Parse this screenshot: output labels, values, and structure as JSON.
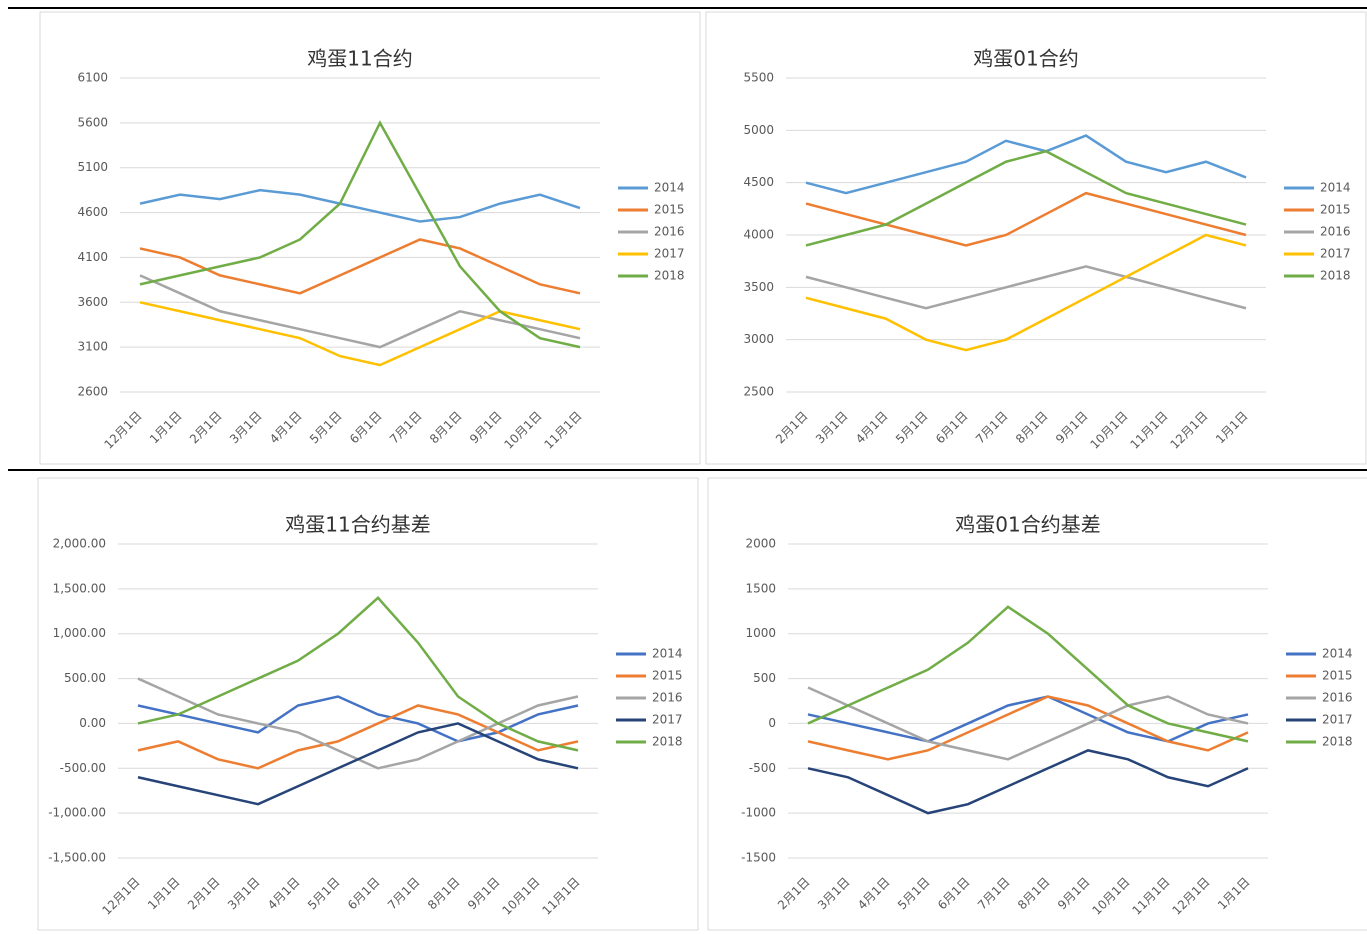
{
  "chart_data": [
    {
      "type": "line",
      "title": "鸡蛋11合约",
      "categories": [
        "12月1日",
        "1月1日",
        "2月1日",
        "3月1日",
        "4月1日",
        "5月1日",
        "6月1日",
        "7月1日",
        "8月1日",
        "9月1日",
        "10月1日",
        "11月1日"
      ],
      "ylim": [
        2600,
        6100
      ],
      "yticks": [
        2600,
        3100,
        3600,
        4100,
        4600,
        5100,
        5600,
        6100
      ],
      "grid": true,
      "series": [
        {
          "name": "2014",
          "color": "#5b9bd5",
          "values": [
            4700,
            4800,
            4750,
            4850,
            4800,
            4700,
            4600,
            4500,
            4550,
            4700,
            4800,
            4650
          ]
        },
        {
          "name": "2015",
          "color": "#ed7d31",
          "values": [
            4200,
            4100,
            3900,
            3800,
            3700,
            3900,
            4100,
            4300,
            4200,
            4000,
            3800,
            3700
          ]
        },
        {
          "name": "2016",
          "color": "#a5a5a5",
          "values": [
            3900,
            3700,
            3500,
            3400,
            3300,
            3200,
            3100,
            3300,
            3500,
            3400,
            3300,
            3200
          ]
        },
        {
          "name": "2017",
          "color": "#ffc000",
          "values": [
            3600,
            3500,
            3400,
            3300,
            3200,
            3000,
            2900,
            3100,
            3300,
            3500,
            3400,
            3300
          ]
        },
        {
          "name": "2018",
          "color": "#70ad47",
          "values": [
            3800,
            3900,
            4000,
            4100,
            4300,
            4700,
            5600,
            4800,
            4000,
            3500,
            3200,
            3100
          ]
        }
      ]
    },
    {
      "type": "line",
      "title": "鸡蛋01合约",
      "categories": [
        "2月1日",
        "3月1日",
        "4月1日",
        "5月1日",
        "6月1日",
        "7月1日",
        "8月1日",
        "9月1日",
        "10月1日",
        "11月1日",
        "12月1日",
        "1月1日"
      ],
      "ylim": [
        2500,
        5500
      ],
      "yticks": [
        2500,
        3000,
        3500,
        4000,
        4500,
        5000,
        5500
      ],
      "grid": true,
      "series": [
        {
          "name": "2014",
          "color": "#5b9bd5",
          "values": [
            4500,
            4400,
            4500,
            4600,
            4700,
            4900,
            4800,
            4950,
            4700,
            4600,
            4700,
            4550
          ]
        },
        {
          "name": "2015",
          "color": "#ed7d31",
          "values": [
            4300,
            4200,
            4100,
            4000,
            3900,
            4000,
            4200,
            4400,
            4300,
            4200,
            4100,
            4000
          ]
        },
        {
          "name": "2016",
          "color": "#a5a5a5",
          "values": [
            3600,
            3500,
            3400,
            3300,
            3400,
            3500,
            3600,
            3700,
            3600,
            3500,
            3400,
            3300
          ]
        },
        {
          "name": "2017",
          "color": "#ffc000",
          "values": [
            3400,
            3300,
            3200,
            3000,
            2900,
            3000,
            3200,
            3400,
            3600,
            3800,
            4000,
            3900
          ]
        },
        {
          "name": "2018",
          "color": "#70ad47",
          "values": [
            3900,
            4000,
            4100,
            4300,
            4500,
            4700,
            4800,
            4600,
            4400,
            4300,
            4200,
            4100
          ]
        }
      ]
    },
    {
      "type": "line",
      "title": "鸡蛋11合约基差",
      "categories": [
        "12月1日",
        "1月1日",
        "2月1日",
        "3月1日",
        "4月1日",
        "5月1日",
        "6月1日",
        "7月1日",
        "8月1日",
        "9月1日",
        "10月1日",
        "11月1日"
      ],
      "ylim": [
        -1500,
        2000
      ],
      "yticks": [
        {
          "value": -1500,
          "label": "-1,500.00"
        },
        {
          "value": -1000,
          "label": "-1,000.00"
        },
        {
          "value": -500,
          "label": "-500.00"
        },
        {
          "value": 0,
          "label": "0.00"
        },
        {
          "value": 500,
          "label": "500.00"
        },
        {
          "value": 1000,
          "label": "1,000.00"
        },
        {
          "value": 1500,
          "label": "1,500.00"
        },
        {
          "value": 2000,
          "label": "2,000.00"
        }
      ],
      "grid": true,
      "series": [
        {
          "name": "2014",
          "color": "#4472c4",
          "values": [
            200,
            100,
            0,
            -100,
            200,
            300,
            100,
            0,
            -200,
            -100,
            100,
            200
          ]
        },
        {
          "name": "2015",
          "color": "#ed7d31",
          "values": [
            -300,
            -200,
            -400,
            -500,
            -300,
            -200,
            0,
            200,
            100,
            -100,
            -300,
            -200
          ]
        },
        {
          "name": "2016",
          "color": "#a5a5a5",
          "values": [
            500,
            300,
            100,
            0,
            -100,
            -300,
            -500,
            -400,
            -200,
            0,
            200,
            300
          ]
        },
        {
          "name": "2017",
          "color": "#264478",
          "values": [
            -600,
            -700,
            -800,
            -900,
            -700,
            -500,
            -300,
            -100,
            0,
            -200,
            -400,
            -500
          ]
        },
        {
          "name": "2018",
          "color": "#70ad47",
          "values": [
            0,
            100,
            300,
            500,
            700,
            1000,
            1400,
            900,
            300,
            0,
            -200,
            -300
          ]
        }
      ]
    },
    {
      "type": "line",
      "title": "鸡蛋01合约基差",
      "categories": [
        "2月1日",
        "3月1日",
        "4月1日",
        "5月1日",
        "6月1日",
        "7月1日",
        "8月1日",
        "9月1日",
        "10月1日",
        "11月1日",
        "12月1日",
        "1月1日"
      ],
      "ylim": [
        -1500,
        2000
      ],
      "yticks": [
        -1500,
        -1000,
        -500,
        0,
        500,
        1000,
        1500,
        2000
      ],
      "grid": true,
      "series": [
        {
          "name": "2014",
          "color": "#4472c4",
          "values": [
            100,
            0,
            -100,
            -200,
            0,
            200,
            300,
            100,
            -100,
            -200,
            0,
            100
          ]
        },
        {
          "name": "2015",
          "color": "#ed7d31",
          "values": [
            -200,
            -300,
            -400,
            -300,
            -100,
            100,
            300,
            200,
            0,
            -200,
            -300,
            -100
          ]
        },
        {
          "name": "2016",
          "color": "#a5a5a5",
          "values": [
            400,
            200,
            0,
            -200,
            -300,
            -400,
            -200,
            0,
            200,
            300,
            100,
            0
          ]
        },
        {
          "name": "2017",
          "color": "#264478",
          "values": [
            -500,
            -600,
            -800,
            -1000,
            -900,
            -700,
            -500,
            -300,
            -400,
            -600,
            -700,
            -500
          ]
        },
        {
          "name": "2018",
          "color": "#70ad47",
          "values": [
            0,
            200,
            400,
            600,
            900,
            1300,
            1000,
            600,
            200,
            0,
            -100,
            -200
          ]
        }
      ]
    }
  ]
}
